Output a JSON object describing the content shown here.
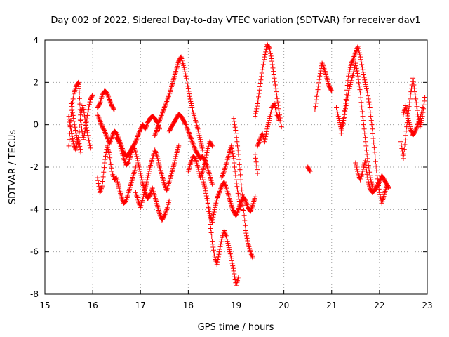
{
  "chart_data": {
    "type": "scatter",
    "title": "Day 002 of 2022, Sidereal Day-to-day VTEC variation (SDTVAR) for receiver dav1",
    "xlabel": "GPS time / hours",
    "ylabel": "SDTVAR / TECUs",
    "xlim": [
      15,
      23
    ],
    "ylim": [
      -8,
      4
    ],
    "xticks": [
      "15",
      "16",
      "17",
      "18",
      "19",
      "20",
      "21",
      "22",
      "23"
    ],
    "yticks": [
      "-8",
      "-6",
      "-4",
      "-2",
      "0",
      "2",
      "4"
    ],
    "grid": true,
    "marker": "+",
    "color": "#ff0000",
    "series": [
      {
        "name": "dav1",
        "tracks": [
          {
            "x": [
              15.5,
              15.55,
              15.6,
              15.65,
              15.7,
              15.72,
              15.75,
              15.8,
              15.85,
              15.9,
              15.95,
              16.0
            ],
            "y": [
              -1.0,
              0.5,
              1.4,
              1.8,
              2.0,
              1.5,
              0.2,
              -0.7,
              -0.2,
              0.6,
              1.2,
              1.4
            ]
          },
          {
            "x": [
              15.55,
              15.6,
              15.65,
              15.7,
              15.75,
              15.8,
              15.85,
              15.9,
              15.95
            ],
            "y": [
              1.0,
              0.3,
              -0.4,
              -0.9,
              0.5,
              0.9,
              0.1,
              -0.5,
              -1.1
            ]
          },
          {
            "x": [
              15.5,
              15.55,
              15.6,
              15.65,
              15.7,
              15.75
            ],
            "y": [
              0.4,
              -0.3,
              -0.9,
              -1.2,
              -0.6,
              -1.3
            ]
          },
          {
            "x": [
              16.1,
              16.15,
              16.2,
              16.25,
              16.3,
              16.35,
              16.4,
              16.45
            ],
            "y": [
              0.8,
              1.0,
              1.4,
              1.6,
              1.5,
              1.2,
              0.9,
              0.7
            ]
          },
          {
            "x": [
              16.1,
              16.15,
              16.2,
              16.25,
              16.3,
              16.35,
              16.4,
              16.45,
              16.5,
              16.55,
              16.6,
              16.65,
              16.7,
              16.75,
              16.8,
              16.85,
              16.9,
              16.95,
              17.0,
              17.05,
              17.1,
              17.15,
              17.2,
              17.25,
              17.3,
              17.35,
              17.4
            ],
            "y": [
              0.5,
              0.2,
              -0.1,
              -0.3,
              -0.6,
              -0.9,
              -0.6,
              -0.3,
              -0.4,
              -0.7,
              -1.0,
              -1.3,
              -1.5,
              -1.4,
              -1.2,
              -1.0,
              -0.8,
              -0.5,
              -0.2,
              0.0,
              -0.2,
              0.1,
              0.3,
              0.4,
              0.3,
              0.1,
              -0.2
            ]
          },
          {
            "x": [
              16.1,
              16.15,
              16.2,
              16.25,
              16.3,
              16.35,
              16.4,
              16.45,
              16.5,
              16.55,
              16.6,
              16.65,
              16.7,
              16.75,
              16.8,
              16.85,
              16.9
            ],
            "y": [
              -2.5,
              -3.2,
              -2.9,
              -1.8,
              -1.0,
              -1.4,
              -2.2,
              -2.6,
              -2.5,
              -3.0,
              -3.4,
              -3.7,
              -3.6,
              -3.2,
              -2.8,
              -2.4,
              -2.0
            ]
          },
          {
            "x": [
              16.5,
              16.55,
              16.6,
              16.65,
              16.7,
              16.75,
              16.8,
              16.85,
              16.9,
              16.95,
              17.0,
              17.05,
              17.1,
              17.15,
              17.2,
              17.25,
              17.3,
              17.35,
              17.4,
              17.45,
              17.5,
              17.55,
              17.6
            ],
            "y": [
              -0.6,
              -0.8,
              -1.2,
              -1.6,
              -1.9,
              -1.8,
              -1.4,
              -1.0,
              -1.3,
              -1.8,
              -2.3,
              -2.8,
              -3.2,
              -3.5,
              -3.3,
              -3.0,
              -3.4,
              -3.8,
              -4.2,
              -4.5,
              -4.3,
              -4.0,
              -3.6
            ]
          },
          {
            "x": [
              16.9,
              16.95,
              17.0,
              17.05,
              17.1,
              17.15,
              17.2,
              17.25,
              17.3,
              17.35,
              17.4,
              17.45,
              17.5,
              17.55,
              17.6,
              17.65,
              17.7,
              17.75,
              17.8
            ],
            "y": [
              -3.2,
              -3.6,
              -3.9,
              -3.5,
              -3.0,
              -2.5,
              -2.0,
              -1.6,
              -1.2,
              -1.5,
              -2.0,
              -2.4,
              -2.8,
              -3.1,
              -2.7,
              -2.3,
              -1.9,
              -1.4,
              -1.0
            ]
          },
          {
            "x": [
              17.3,
              17.35,
              17.4,
              17.45,
              17.5,
              17.55,
              17.6,
              17.65,
              17.7,
              17.75,
              17.8,
              17.85,
              17.9,
              17.95,
              18.0,
              18.05,
              18.1,
              18.15,
              18.2,
              18.25,
              18.3
            ],
            "y": [
              -0.5,
              -0.2,
              0.2,
              0.5,
              0.8,
              1.1,
              1.4,
              1.8,
              2.2,
              2.6,
              3.0,
              3.2,
              2.8,
              2.3,
              1.7,
              1.1,
              0.6,
              0.2,
              -0.2,
              -0.7,
              -1.2
            ]
          },
          {
            "x": [
              17.6,
              17.65,
              17.7,
              17.75,
              17.8,
              17.85,
              17.9,
              17.95,
              18.0,
              18.05,
              18.1,
              18.15,
              18.2,
              18.25,
              18.3,
              18.35,
              18.4,
              18.45,
              18.5
            ],
            "y": [
              -0.3,
              -0.1,
              0.1,
              0.3,
              0.5,
              0.4,
              0.2,
              0.0,
              -0.3,
              -0.6,
              -0.9,
              -1.2,
              -1.4,
              -1.6,
              -1.5,
              -1.7,
              -2.0,
              -2.4,
              -2.8
            ]
          },
          {
            "x": [
              18.0,
              18.05,
              18.1,
              18.15,
              18.2,
              18.25,
              18.3,
              18.35,
              18.4,
              18.45,
              18.5
            ],
            "y": [
              -2.2,
              -1.8,
              -1.5,
              -1.6,
              -2.0,
              -2.5,
              -2.2,
              -1.8,
              -1.2,
              -0.8,
              -1.0
            ]
          },
          {
            "x": [
              18.3,
              18.35,
              18.4,
              18.45,
              18.5,
              18.55,
              18.6,
              18.65,
              18.7,
              18.75,
              18.8,
              18.85,
              18.9,
              18.95,
              19.0,
              19.05,
              19.1,
              19.15,
              19.2,
              19.25,
              19.3,
              19.35,
              19.4
            ],
            "y": [
              -2.5,
              -3.0,
              -3.6,
              -4.2,
              -4.6,
              -4.0,
              -3.5,
              -3.2,
              -2.9,
              -2.7,
              -3.0,
              -3.4,
              -3.8,
              -4.1,
              -4.3,
              -4.0,
              -3.7,
              -3.4,
              -3.6,
              -3.9,
              -4.1,
              -3.8,
              -3.4
            ]
          },
          {
            "x": [
              18.4,
              18.45,
              18.5,
              18.55,
              18.6,
              18.65,
              18.7,
              18.75,
              18.8,
              18.85,
              18.9,
              18.95,
              19.0,
              19.05
            ],
            "y": [
              -3.5,
              -4.5,
              -5.5,
              -6.2,
              -6.6,
              -6.0,
              -5.4,
              -5.0,
              -5.3,
              -5.8,
              -6.3,
              -6.9,
              -7.6,
              -7.2
            ]
          },
          {
            "x": [
              18.7,
              18.75,
              18.8,
              18.85,
              18.9,
              18.95,
              19.0,
              19.05,
              19.1
            ],
            "y": [
              -2.5,
              -2.2,
              -1.8,
              -1.4,
              -1.0,
              -1.6,
              -2.6,
              -3.4,
              -4.0
            ]
          },
          {
            "x": [
              18.95,
              19.0,
              19.05,
              19.1,
              19.15,
              19.2,
              19.25,
              19.3,
              19.35
            ],
            "y": [
              0.3,
              -0.4,
              -1.4,
              -2.6,
              -3.8,
              -5.0,
              -5.6,
              -6.0,
              -6.3
            ]
          },
          {
            "x": [
              19.4,
              19.45,
              19.5,
              19.55,
              19.6,
              19.65,
              19.7,
              19.75,
              19.8,
              19.85,
              19.9,
              19.95
            ],
            "y": [
              0.4,
              1.0,
              1.8,
              2.6,
              3.2,
              3.8,
              3.6,
              3.0,
              2.2,
              1.4,
              0.6,
              -0.1
            ]
          },
          {
            "x": [
              19.45,
              19.5,
              19.55,
              19.6,
              19.65,
              19.7,
              19.75,
              19.8,
              19.85,
              19.9
            ],
            "y": [
              -1.0,
              -0.7,
              -0.4,
              -0.8,
              -0.2,
              0.3,
              0.8,
              1.0,
              0.5,
              0.2
            ]
          },
          {
            "x": [
              19.4,
              19.45
            ],
            "y": [
              -1.4,
              -2.3
            ]
          },
          {
            "x": [
              20.5,
              20.55
            ],
            "y": [
              -2.0,
              -2.2
            ]
          },
          {
            "x": [
              20.65,
              20.7,
              20.75,
              20.8,
              20.85,
              20.9,
              20.95,
              21.0
            ],
            "y": [
              0.7,
              1.5,
              2.3,
              2.9,
              2.6,
              2.2,
              1.8,
              1.6
            ]
          },
          {
            "x": [
              21.1,
              21.15,
              21.2,
              21.25,
              21.3,
              21.35,
              21.4,
              21.45,
              21.5,
              21.55,
              21.6,
              21.65,
              21.7,
              21.75,
              21.8,
              21.85,
              21.9,
              21.95,
              22.0,
              22.05,
              22.1,
              22.15
            ],
            "y": [
              0.8,
              0.3,
              -0.2,
              0.3,
              1.2,
              2.3,
              2.8,
              3.1,
              3.4,
              3.7,
              3.2,
              2.6,
              2.0,
              1.5,
              0.8,
              -0.2,
              -1.3,
              -2.4,
              -3.2,
              -3.7,
              -3.3,
              -2.9
            ]
          },
          {
            "x": [
              21.2,
              21.25,
              21.3,
              21.35,
              21.4,
              21.45,
              21.5,
              21.55,
              21.6,
              21.65,
              21.7,
              21.75,
              21.8,
              21.85
            ],
            "y": [
              -0.4,
              0.2,
              0.9,
              1.5,
              2.0,
              2.4,
              2.9,
              2.3,
              1.5,
              0.4,
              -0.6,
              -1.6,
              -2.4,
              -2.9
            ]
          },
          {
            "x": [
              21.5,
              21.55,
              21.6,
              21.65,
              21.7,
              21.75,
              21.8,
              21.85,
              21.9,
              21.95,
              22.0,
              22.05,
              22.1,
              22.15,
              22.2
            ],
            "y": [
              -1.8,
              -2.3,
              -2.6,
              -2.2,
              -1.7,
              -2.5,
              -3.0,
              -3.2,
              -3.1,
              -2.9,
              -2.7,
              -2.4,
              -2.6,
              -2.8,
              -3.0
            ]
          },
          {
            "x": [
              22.45,
              22.5,
              22.55,
              22.6,
              22.65,
              22.7,
              22.75,
              22.8,
              22.85,
              22.9,
              22.95
            ],
            "y": [
              -0.8,
              -1.6,
              -0.5,
              0.5,
              1.4,
              2.2,
              1.4,
              0.5,
              -0.1,
              0.4,
              1.3
            ]
          },
          {
            "x": [
              22.5,
              22.55,
              22.6,
              22.65,
              22.7,
              22.75,
              22.8,
              22.85,
              22.9
            ],
            "y": [
              0.5,
              0.9,
              0.3,
              -0.2,
              -0.5,
              -0.3,
              0.0,
              0.3,
              0.8
            ]
          }
        ]
      }
    ]
  }
}
